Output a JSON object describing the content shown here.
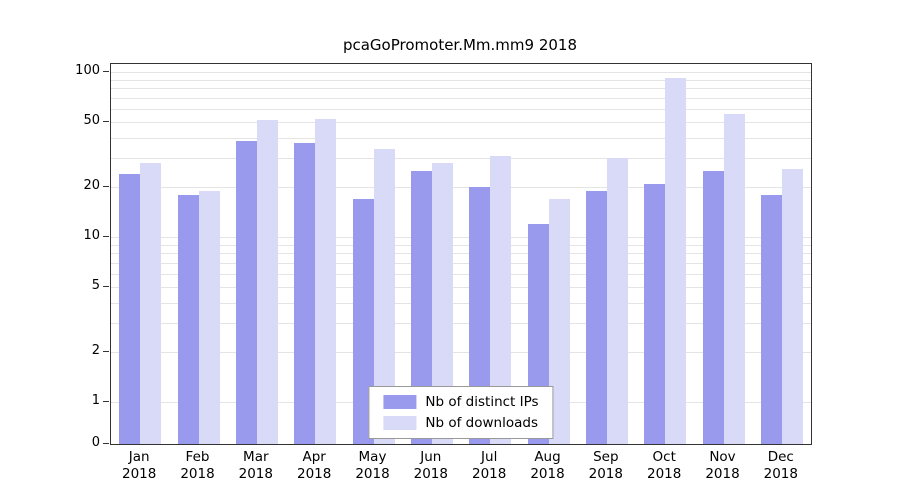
{
  "chart_data": {
    "type": "bar",
    "title": "pcaGoPromoter.Mm.mm9 2018",
    "y_scale": "log",
    "ylim": [
      0,
      100
    ],
    "categories": [
      "Jan",
      "Feb",
      "Mar",
      "Apr",
      "May",
      "Jun",
      "Jul",
      "Aug",
      "Sep",
      "Oct",
      "Nov",
      "Dec"
    ],
    "year_label": "2018",
    "series": [
      {
        "name": "Nb of distinct IPs",
        "color": "#9999ee",
        "values": [
          24,
          18,
          38,
          37,
          17,
          25,
          20,
          12,
          19,
          21,
          25,
          18
        ]
      },
      {
        "name": "Nb of downloads",
        "color": "#d9d9f8",
        "values": [
          28,
          19,
          51,
          52,
          34,
          28,
          31,
          17,
          30,
          92,
          56,
          26
        ]
      }
    ],
    "yticks": [
      0,
      1,
      2,
      5,
      10,
      20,
      50,
      100
    ],
    "gridline_values": [
      1,
      2,
      3,
      4,
      5,
      6,
      7,
      8,
      9,
      10,
      20,
      30,
      40,
      50,
      60,
      70,
      80,
      90,
      100
    ],
    "legend_position": "bottom-center",
    "grid_color": "#e4e4e4"
  }
}
